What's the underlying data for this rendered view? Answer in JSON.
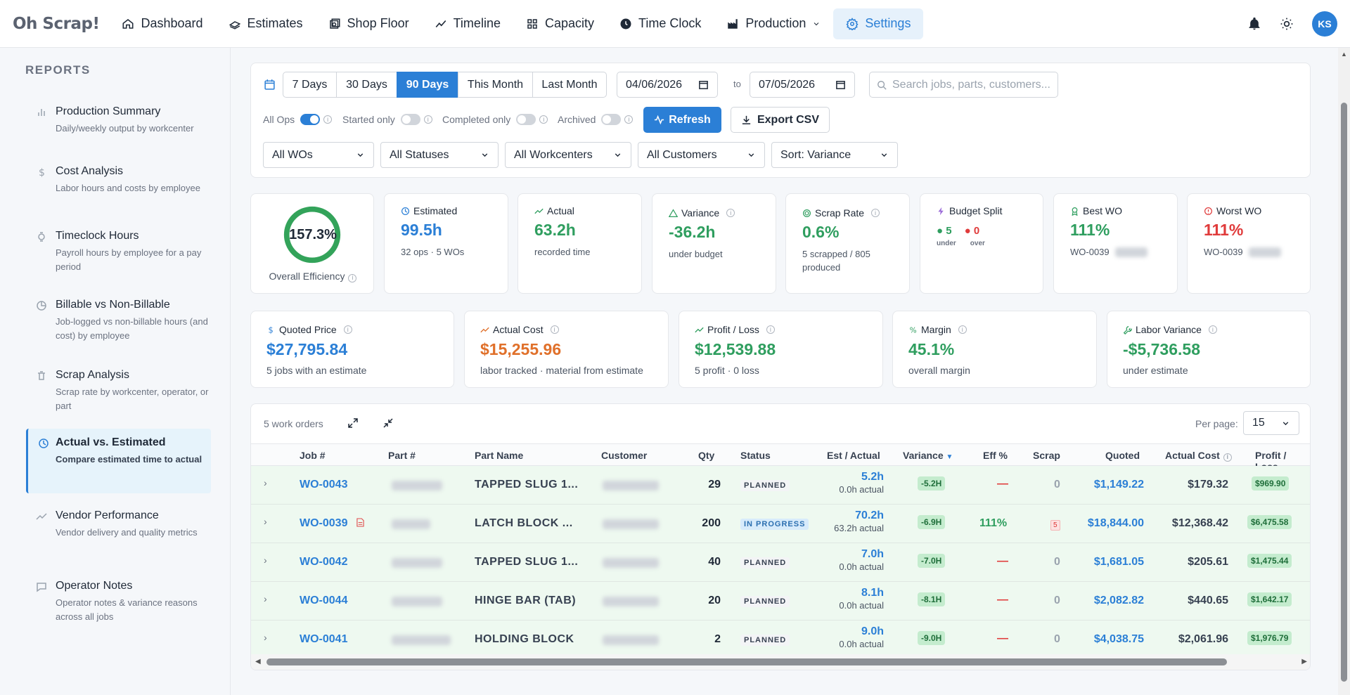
{
  "app": {
    "brand": "Oh Scrap!"
  },
  "nav": [
    {
      "label": "Dashboard",
      "icon": "home-icon"
    },
    {
      "label": "Estimates",
      "icon": "cash-icon"
    },
    {
      "label": "Shop Floor",
      "icon": "machine-icon"
    },
    {
      "label": "Timeline",
      "icon": "trend-icon"
    },
    {
      "label": "Capacity",
      "icon": "grid-icon"
    },
    {
      "label": "Time Clock",
      "icon": "clock-icon"
    },
    {
      "label": "Production",
      "icon": "factory-icon"
    },
    {
      "label": "Settings",
      "icon": "gear-icon"
    }
  ],
  "user": {
    "initials": "KS"
  },
  "sidebar": {
    "title": "REPORTS",
    "items": [
      {
        "title": "Production Summary",
        "desc": "Daily/weekly output by workcenter"
      },
      {
        "title": "Cost Analysis",
        "desc": "Labor hours and costs by employee"
      },
      {
        "title": "Timeclock Hours",
        "desc": "Payroll hours by employee for a pay period"
      },
      {
        "title": "Billable vs Non-Billable",
        "desc": "Job-logged vs non-billable hours (and cost) by employee"
      },
      {
        "title": "Scrap Analysis",
        "desc": "Scrap rate by workcenter, operator, or part"
      },
      {
        "title": "Actual vs. Estimated",
        "desc": "Compare estimated time to actual"
      },
      {
        "title": "Vendor Performance",
        "desc": "Vendor delivery and quality metrics"
      },
      {
        "title": "Operator Notes",
        "desc": "Operator notes & variance reasons across all jobs"
      }
    ]
  },
  "filters": {
    "ranges": [
      "7 Days",
      "30 Days",
      "90 Days",
      "This Month",
      "Last Month"
    ],
    "active_range": "90 Days",
    "date_from": "04/06/2026",
    "to_label": "to",
    "date_to": "07/05/2026",
    "search_placeholder": "Search jobs, parts, customers...",
    "toggles": [
      {
        "label": "All Ops",
        "on": true
      },
      {
        "label": "Started only",
        "on": false
      },
      {
        "label": "Completed only",
        "on": false
      },
      {
        "label": "Archived",
        "on": false
      }
    ],
    "refresh_label": "Refresh",
    "export_label": "Export CSV",
    "selects": [
      "All WOs",
      "All Statuses",
      "All Workcenters",
      "All Customers",
      "Sort: Variance"
    ]
  },
  "kpis": {
    "efficiency": {
      "value": "157.3%",
      "label": "Overall Efficiency"
    },
    "estimated": {
      "label": "Estimated",
      "value": "99.5h",
      "sub": "32 ops · 5 WOs"
    },
    "actual": {
      "label": "Actual",
      "value": "63.2h",
      "sub": "recorded time"
    },
    "variance": {
      "label": "Variance",
      "value": "-36.2h",
      "sub": "under budget"
    },
    "scrap_rate": {
      "label": "Scrap Rate",
      "value": "0.6%",
      "sub": "5 scrapped / 805 produced"
    },
    "budget_split": {
      "label": "Budget Split",
      "under": "5",
      "over": "0",
      "under_label": "under",
      "over_label": "over"
    },
    "best_wo": {
      "label": "Best WO",
      "value": "111%",
      "wo": "WO-0039"
    },
    "worst_wo": {
      "label": "Worst WO",
      "value": "111%",
      "wo": "WO-0039"
    }
  },
  "money": {
    "quoted": {
      "label": "Quoted Price",
      "value": "$27,795.84",
      "sub": "5 jobs with an estimate"
    },
    "actual_cost": {
      "label": "Actual Cost",
      "value": "$15,255.96",
      "sub": "labor tracked · material from estimate"
    },
    "profit": {
      "label": "Profit / Loss",
      "value": "$12,539.88",
      "sub": "5 profit · 0 loss"
    },
    "margin": {
      "label": "Margin",
      "value": "45.1%",
      "sub": "overall margin"
    },
    "labor_variance": {
      "label": "Labor Variance",
      "value": "-$5,736.58",
      "sub": "under estimate"
    }
  },
  "table": {
    "count_label": "5 work orders",
    "per_page_label": "Per page:",
    "per_page": "15",
    "columns": [
      "Job #",
      "Part #",
      "Part Name",
      "Customer",
      "Qty",
      "Status",
      "Est / Actual",
      "Variance",
      "Eff %",
      "Scrap",
      "Quoted",
      "Actual Cost",
      "Profit / Loss"
    ],
    "rows": [
      {
        "job": "WO-0043",
        "part_name": "TAPPED SLUG 1...",
        "qty": "29",
        "status": "PLANNED",
        "est": "5.2h",
        "actual": "0.0h actual",
        "variance": "-5.2H",
        "eff": "—",
        "scrap": "0",
        "quoted": "$1,149.22",
        "cost": "$179.32",
        "profit": "$969.90"
      },
      {
        "job": "WO-0039",
        "part_name": "LATCH BLOCK ...",
        "qty": "200",
        "status": "IN PROGRESS",
        "est": "70.2h",
        "actual": "63.2h actual",
        "variance": "-6.9H",
        "eff": "111%",
        "scrap": "5",
        "quoted": "$18,844.00",
        "cost": "$12,368.42",
        "profit": "$6,475.58"
      },
      {
        "job": "WO-0042",
        "part_name": "TAPPED SLUG 1...",
        "qty": "40",
        "status": "PLANNED",
        "est": "7.0h",
        "actual": "0.0h actual",
        "variance": "-7.0H",
        "eff": "—",
        "scrap": "0",
        "quoted": "$1,681.05",
        "cost": "$205.61",
        "profit": "$1,475.44"
      },
      {
        "job": "WO-0044",
        "part_name": "HINGE BAR (TAB)",
        "qty": "20",
        "status": "PLANNED",
        "est": "8.1h",
        "actual": "0.0h actual",
        "variance": "-8.1H",
        "eff": "—",
        "scrap": "0",
        "quoted": "$2,082.82",
        "cost": "$440.65",
        "profit": "$1,642.17"
      },
      {
        "job": "WO-0041",
        "part_name": "HOLDING BLOCK",
        "qty": "2",
        "status": "PLANNED",
        "est": "9.0h",
        "actual": "0.0h actual",
        "variance": "-9.0H",
        "eff": "—",
        "scrap": "0",
        "quoted": "$4,038.75",
        "cost": "$2,061.96",
        "profit": "$1,976.79"
      }
    ]
  }
}
